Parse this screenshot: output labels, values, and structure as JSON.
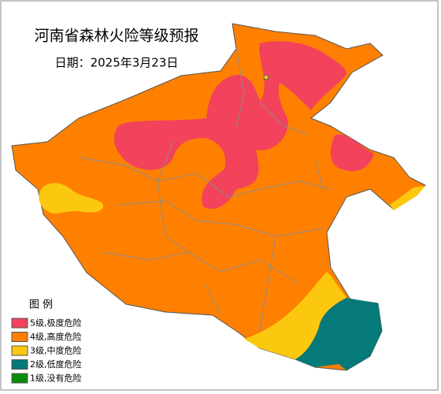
{
  "title": "河南省森林火险等级预报",
  "date": "日期：2025年3月23日",
  "legend": {
    "title": "图  例",
    "items": [
      {
        "label": "5级,极度危险",
        "color": "#f2425c"
      },
      {
        "label": "4级,高度危险",
        "color": "#ff8000"
      },
      {
        "label": "3级,中度危险",
        "color": "#fcc80f"
      },
      {
        "label": "2级,低度危险",
        "color": "#057a79"
      },
      {
        "label": "1级,没有危险",
        "color": "#0a8a0a"
      }
    ]
  }
}
